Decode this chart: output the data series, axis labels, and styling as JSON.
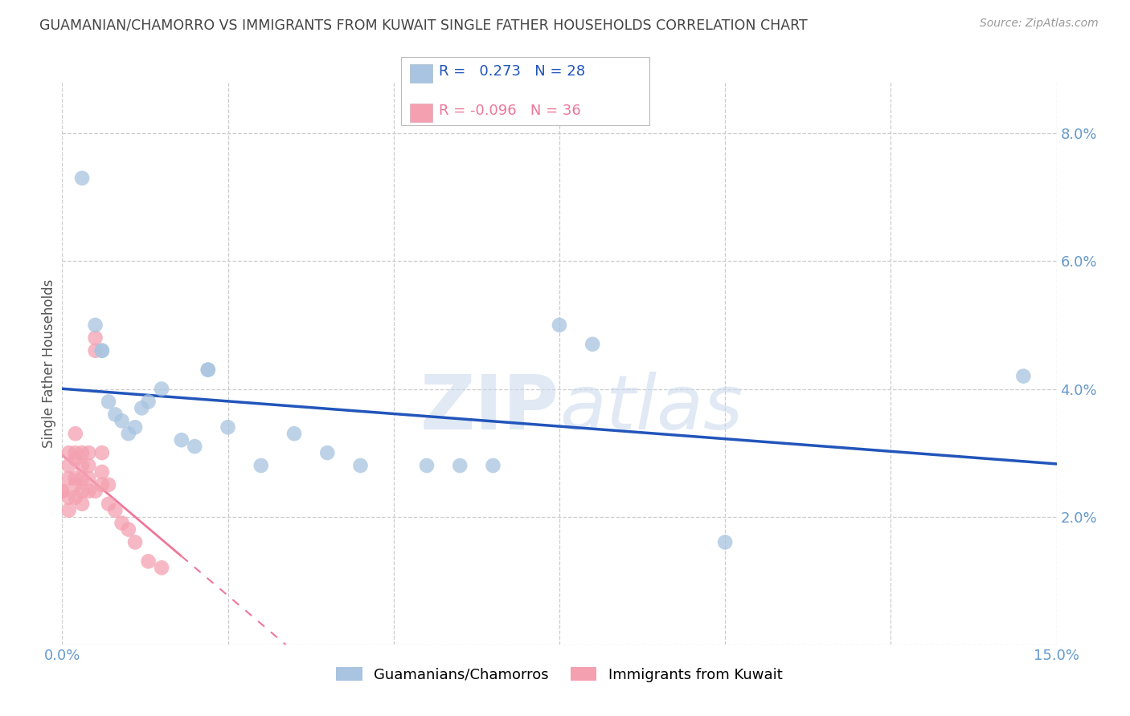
{
  "title": "GUAMANIAN/CHAMORRO VS IMMIGRANTS FROM KUWAIT SINGLE FATHER HOUSEHOLDS CORRELATION CHART",
  "source": "Source: ZipAtlas.com",
  "ylabel": "Single Father Households",
  "xlim": [
    0.0,
    0.15
  ],
  "ylim": [
    0.0,
    0.088
  ],
  "xtick_positions": [
    0.0,
    0.025,
    0.05,
    0.075,
    0.1,
    0.125,
    0.15
  ],
  "xtick_labels": [
    "0.0%",
    "",
    "",
    "",
    "",
    "",
    "15.0%"
  ],
  "ytick_positions": [
    0.0,
    0.02,
    0.04,
    0.06,
    0.08
  ],
  "ytick_labels_right": [
    "",
    "2.0%",
    "4.0%",
    "6.0%",
    "8.0%"
  ],
  "blue_R": 0.273,
  "blue_N": 28,
  "pink_R": -0.096,
  "pink_N": 36,
  "blue_color": "#A8C4E0",
  "pink_color": "#F4A0B0",
  "blue_line_color": "#2255BB",
  "pink_line_color": "#EE7799",
  "watermark": "ZIPatlas",
  "blue_points_x": [
    0.003,
    0.005,
    0.006,
    0.006,
    0.007,
    0.008,
    0.009,
    0.01,
    0.011,
    0.012,
    0.013,
    0.015,
    0.018,
    0.02,
    0.022,
    0.022,
    0.025,
    0.03,
    0.035,
    0.04,
    0.045,
    0.055,
    0.06,
    0.065,
    0.075,
    0.08,
    0.1,
    0.145
  ],
  "blue_points_y": [
    0.073,
    0.05,
    0.046,
    0.046,
    0.038,
    0.036,
    0.035,
    0.033,
    0.034,
    0.037,
    0.038,
    0.04,
    0.032,
    0.031,
    0.043,
    0.043,
    0.034,
    0.028,
    0.033,
    0.03,
    0.028,
    0.028,
    0.028,
    0.028,
    0.05,
    0.047,
    0.016,
    0.042
  ],
  "pink_points_x": [
    0.0,
    0.0,
    0.001,
    0.001,
    0.001,
    0.001,
    0.001,
    0.002,
    0.002,
    0.002,
    0.002,
    0.002,
    0.002,
    0.003,
    0.003,
    0.003,
    0.003,
    0.003,
    0.004,
    0.004,
    0.004,
    0.004,
    0.005,
    0.005,
    0.005,
    0.006,
    0.006,
    0.006,
    0.007,
    0.007,
    0.008,
    0.009,
    0.01,
    0.011,
    0.013,
    0.015
  ],
  "pink_points_y": [
    0.024,
    0.024,
    0.03,
    0.028,
    0.026,
    0.023,
    0.021,
    0.033,
    0.03,
    0.029,
    0.026,
    0.025,
    0.023,
    0.03,
    0.028,
    0.026,
    0.024,
    0.022,
    0.03,
    0.028,
    0.026,
    0.024,
    0.048,
    0.046,
    0.024,
    0.03,
    0.027,
    0.025,
    0.025,
    0.022,
    0.021,
    0.019,
    0.018,
    0.016,
    0.013,
    0.012
  ],
  "background_color": "#FFFFFF",
  "grid_color": "#CCCCCC",
  "axis_color": "#6699CC",
  "title_color": "#444444"
}
